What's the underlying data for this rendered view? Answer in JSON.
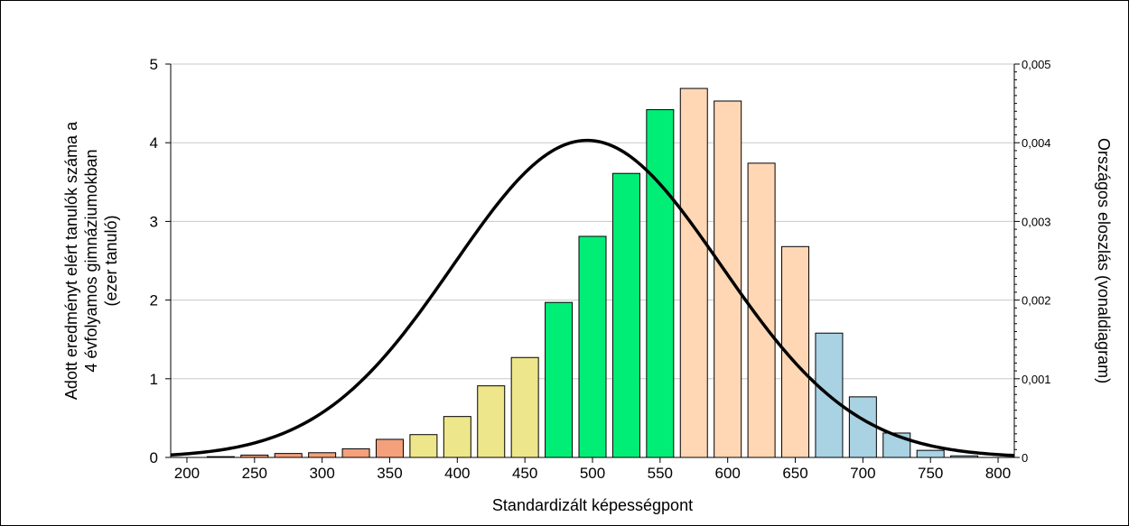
{
  "chart_data": {
    "type": "bar",
    "xlabel": "Standardizált képességpont",
    "ylabel_lines": [
      "Adott eredményt elért tanulók száma a",
      "4 évfolyamos gimnáziumokban",
      "(ezer tanuló)"
    ],
    "y2label": "Országos eloszlás (vonaldiagram)",
    "x_ticks": [
      "200",
      "250",
      "300",
      "350",
      "400",
      "450",
      "500",
      "550",
      "600",
      "650",
      "700",
      "750",
      "800"
    ],
    "y_ticks": [
      "0",
      "1",
      "2",
      "3",
      "4",
      "5"
    ],
    "y2_ticks": [
      "0",
      "0,001",
      "0,002",
      "0,003",
      "0,004",
      "0,005"
    ],
    "xlim": [
      188,
      812
    ],
    "ylim": [
      0,
      5
    ],
    "y2lim": [
      0,
      0.005
    ],
    "grid": true,
    "bars": {
      "x": [
        225,
        250,
        275,
        300,
        325,
        350,
        375,
        400,
        425,
        450,
        475,
        500,
        525,
        550,
        575,
        600,
        625,
        650,
        675,
        700,
        725,
        750,
        775
      ],
      "values": [
        0.01,
        0.03,
        0.05,
        0.06,
        0.11,
        0.23,
        0.29,
        0.52,
        0.91,
        1.27,
        1.97,
        2.81,
        3.61,
        4.42,
        4.69,
        4.53,
        3.74,
        2.68,
        1.58,
        0.77,
        0.31,
        0.09,
        0.02
      ],
      "colors": [
        "#f4a07a",
        "#f4a07a",
        "#f4a07a",
        "#f4a07a",
        "#f4a07a",
        "#f4a07a",
        "#ede68a",
        "#ede68a",
        "#ede68a",
        "#ede68a",
        "#00ee76",
        "#00ee76",
        "#00ee76",
        "#00ee76",
        "#ffd7b5",
        "#ffd7b5",
        "#ffd7b5",
        "#ffd7b5",
        "#a9d2e3",
        "#a9d2e3",
        "#a9d2e3",
        "#a9d2e3",
        "#a9d2e3"
      ]
    },
    "curve": {
      "type": "line",
      "distribution": "normal",
      "mean": 496,
      "sd": 99,
      "peak": 0.00403,
      "x_range": [
        188,
        812
      ],
      "color": "#000000"
    }
  }
}
